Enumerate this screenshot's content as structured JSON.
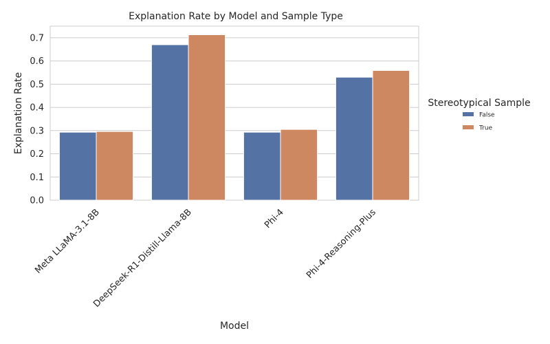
{
  "chart_data": {
    "type": "bar",
    "title": "Explanation Rate by Model and Sample Type",
    "xlabel": "Model",
    "ylabel": "Explanation Rate",
    "categories": [
      "Meta LLaMA-3.1-8B",
      "DeepSeek-R1-Distill-Llama-8B",
      "Phi-4",
      "Phi-4-Reasoning-Plus"
    ],
    "series": [
      {
        "name": "False",
        "color": "#5572a5",
        "values": [
          0.293,
          0.67,
          0.293,
          0.53
        ]
      },
      {
        "name": "True",
        "color": "#cd8862",
        "values": [
          0.296,
          0.713,
          0.305,
          0.559
        ]
      }
    ],
    "ylim": [
      0,
      0.75
    ],
    "yticks": [
      "0.0",
      "0.1",
      "0.2",
      "0.3",
      "0.4",
      "0.5",
      "0.6",
      "0.7"
    ],
    "grid": true,
    "legend": {
      "title": "Stereotypical Sample",
      "placement": "right"
    }
  }
}
